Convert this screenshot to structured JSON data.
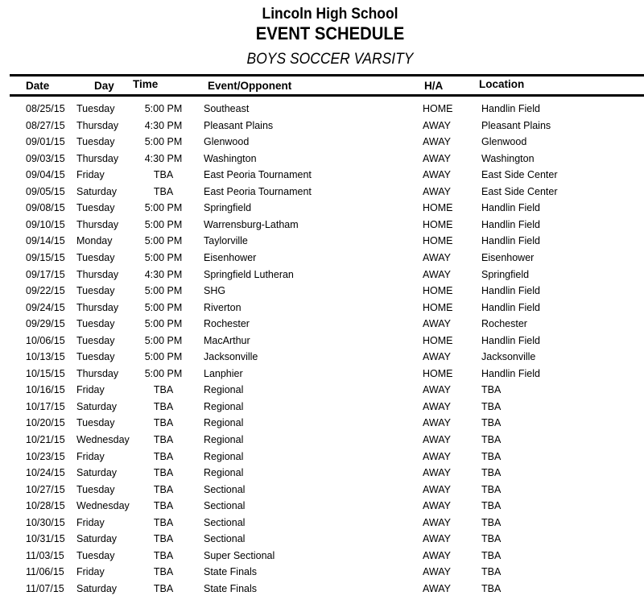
{
  "header": {
    "school": "Lincoln High School",
    "title": "EVENT SCHEDULE",
    "team": "BOYS SOCCER VARSITY"
  },
  "columns": {
    "date": "Date",
    "day": "Day",
    "time": "Time",
    "event": "Event/Opponent",
    "ha": "H/A",
    "location": "Location"
  },
  "rows": [
    [
      "08/25/15",
      "Tuesday",
      "5:00 PM",
      "Southeast",
      "HOME",
      "Handlin Field"
    ],
    [
      "08/27/15",
      "Thursday",
      "4:30 PM",
      "Pleasant Plains",
      "AWAY",
      "Pleasant Plains"
    ],
    [
      "09/01/15",
      "Tuesday",
      "5:00 PM",
      "Glenwood",
      "AWAY",
      "Glenwood"
    ],
    [
      "09/03/15",
      "Thursday",
      "4:30 PM",
      "Washington",
      "AWAY",
      "Washington"
    ],
    [
      "09/04/15",
      "Friday",
      "TBA",
      "East Peoria Tournament",
      "AWAY",
      "East Side Center"
    ],
    [
      "09/05/15",
      "Saturday",
      "TBA",
      "East Peoria Tournament",
      "AWAY",
      "East Side Center"
    ],
    [
      "09/08/15",
      "Tuesday",
      "5:00 PM",
      "Springfield",
      "HOME",
      "Handlin Field"
    ],
    [
      "09/10/15",
      "Thursday",
      "5:00 PM",
      "Warrensburg-Latham",
      "HOME",
      "Handlin Field"
    ],
    [
      "09/14/15",
      "Monday",
      "5:00 PM",
      "Taylorville",
      "HOME",
      "Handlin Field"
    ],
    [
      "09/15/15",
      "Tuesday",
      "5:00 PM",
      "Eisenhower",
      "AWAY",
      "Eisenhower"
    ],
    [
      "09/17/15",
      "Thursday",
      "4:30 PM",
      "Springfield Lutheran",
      "AWAY",
      "Springfield"
    ],
    [
      "09/22/15",
      "Tuesday",
      "5:00 PM",
      "SHG",
      "HOME",
      "Handlin Field"
    ],
    [
      "09/24/15",
      "Thursday",
      "5:00 PM",
      "Riverton",
      "HOME",
      "Handlin Field"
    ],
    [
      "09/29/15",
      "Tuesday",
      "5:00 PM",
      "Rochester",
      "AWAY",
      "Rochester"
    ],
    [
      "10/06/15",
      "Tuesday",
      "5:00 PM",
      "MacArthur",
      "HOME",
      "Handlin Field"
    ],
    [
      "10/13/15",
      "Tuesday",
      "5:00 PM",
      "Jacksonville",
      "AWAY",
      "Jacksonville"
    ],
    [
      "10/15/15",
      "Thursday",
      "5:00 PM",
      "Lanphier",
      "HOME",
      "Handlin Field"
    ],
    [
      "10/16/15",
      "Friday",
      "TBA",
      "Regional",
      "AWAY",
      "TBA"
    ],
    [
      "10/17/15",
      "Saturday",
      "TBA",
      "Regional",
      "AWAY",
      "TBA"
    ],
    [
      "10/20/15",
      "Tuesday",
      "TBA",
      "Regional",
      "AWAY",
      "TBA"
    ],
    [
      "10/21/15",
      "Wednesday",
      "TBA",
      "Regional",
      "AWAY",
      "TBA"
    ],
    [
      "10/23/15",
      "Friday",
      "TBA",
      "Regional",
      "AWAY",
      "TBA"
    ],
    [
      "10/24/15",
      "Saturday",
      "TBA",
      "Regional",
      "AWAY",
      "TBA"
    ],
    [
      "10/27/15",
      "Tuesday",
      "TBA",
      "Sectional",
      "AWAY",
      "TBA"
    ],
    [
      "10/28/15",
      "Wednesday",
      "TBA",
      "Sectional",
      "AWAY",
      "TBA"
    ],
    [
      "10/30/15",
      "Friday",
      "TBA",
      "Sectional",
      "AWAY",
      "TBA"
    ],
    [
      "10/31/15",
      "Saturday",
      "TBA",
      "Sectional",
      "AWAY",
      "TBA"
    ],
    [
      "11/03/15",
      "Tuesday",
      "TBA",
      "Super Sectional",
      "AWAY",
      "TBA"
    ],
    [
      "11/06/15",
      "Friday",
      "TBA",
      "State Finals",
      "AWAY",
      "TBA"
    ],
    [
      "11/07/15",
      "Saturday",
      "TBA",
      "State Finals",
      "AWAY",
      "TBA"
    ]
  ]
}
